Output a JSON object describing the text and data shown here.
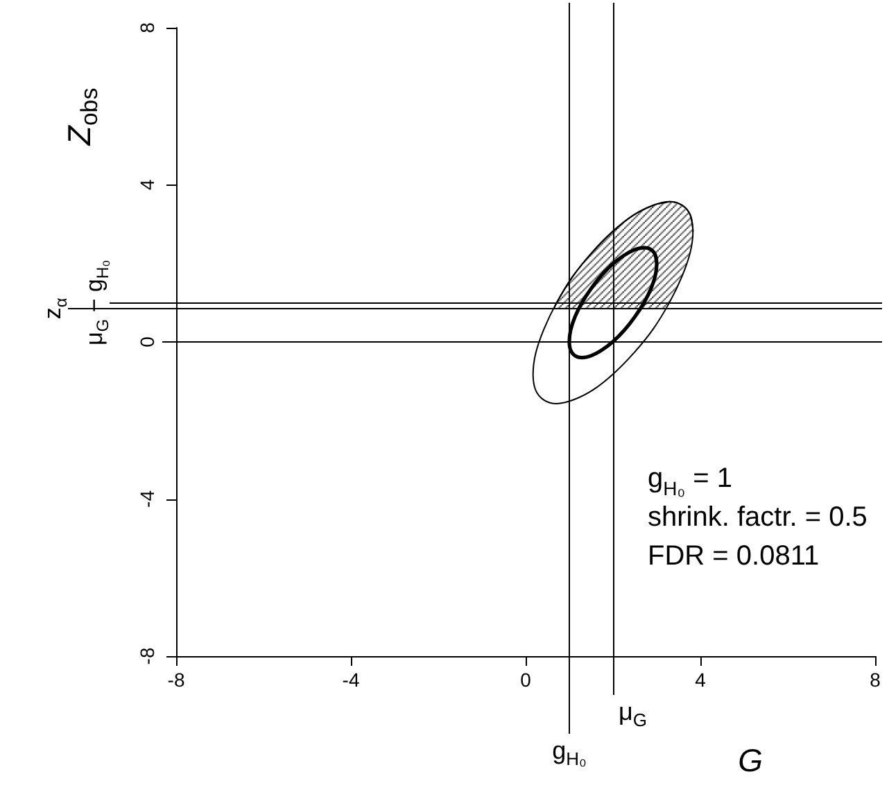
{
  "chart_data": {
    "type": "line",
    "xlabel": "G",
    "ylabel": "Z$_{obs}$",
    "xlim": [
      -8,
      8
    ],
    "ylim": [
      -8,
      8
    ],
    "xticks": [
      -8,
      -4,
      0,
      4,
      8
    ],
    "yticks": [
      -8,
      -4,
      0,
      4,
      8
    ],
    "series": [
      {
        "color": "#000000",
        "x": [
          3.83,
          3.77,
          3.58,
          3.29,
          2.92,
          2.47,
          2.0,
          1.53,
          1.08,
          0.71,
          0.42,
          0.23,
          0.17,
          0.23,
          0.42,
          0.71,
          1.08,
          1.53,
          2.0,
          2.47,
          2.92,
          3.29,
          3.58,
          3.77,
          3.83,
          3.77
        ],
        "values": [
          2.82,
          3.23,
          3.48,
          3.57,
          3.48,
          3.23,
          2.82,
          2.29,
          1.67,
          1.0,
          0.33,
          -0.29,
          -0.82,
          -1.23,
          -1.48,
          -1.57,
          -1.48,
          -1.23,
          -0.82,
          -0.29,
          0.33,
          1.0,
          1.67,
          2.29,
          2.82,
          3.23
        ]
      },
      {
        "color": "#000000",
        "x": [
          3.0,
          2.97,
          2.87,
          2.71,
          2.5,
          2.26,
          2.0,
          1.74,
          1.5,
          1.29,
          1.13,
          1.03,
          1.0,
          1.03,
          1.13,
          1.29,
          1.5,
          1.74,
          2.0,
          2.26,
          2.5,
          2.71,
          2.87,
          2.97,
          3.0,
          2.97
        ],
        "values": [
          1.99,
          2.21,
          2.35,
          2.4,
          2.35,
          2.21,
          1.99,
          1.7,
          1.36,
          1.0,
          0.64,
          0.3,
          0.01,
          -0.21,
          -0.35,
          -0.4,
          -0.35,
          -0.21,
          0.01,
          0.3,
          0.64,
          1.0,
          1.36,
          1.7,
          1.99,
          2.21
        ]
      },
      {
        "color": "#000000",
        "x": [
          0.65,
          0.71,
          1.08,
          1.53,
          2.0,
          2.47,
          2.92,
          3.21,
          3.29,
          3.58,
          3.77,
          3.83
        ],
        "values": [
          0.85,
          1.0,
          1.67,
          2.29,
          2.82,
          3.23,
          3.48,
          3.55,
          3.57,
          3.48,
          3.23,
          2.82
        ],
        "upper": [
          0.85,
          1.0,
          1.67,
          2.29,
          2.82,
          3.23,
          3.48,
          3.55,
          3.57,
          3.48,
          3.23,
          2.82
        ],
        "lower": [
          0.85,
          0.85,
          0.85,
          0.85,
          0.85,
          0.85,
          0.85,
          0.85,
          1.0,
          1.67,
          2.29,
          2.82
        ]
      }
    ],
    "ref_lines": [
      {
        "axis": "x",
        "value": 1,
        "label": "g$_{H₀}$"
      },
      {
        "axis": "x",
        "value": 2,
        "label": "μ$_{G}$"
      },
      {
        "axis": "y",
        "value": 0
      },
      {
        "axis": "y",
        "value": 0.85,
        "label": "z$_{α}$"
      },
      {
        "axis": "y",
        "value": 1,
        "label": "μ$_{G}$ − g$_{H₀}$"
      }
    ],
    "annotations": [
      "g$_{H₀}$ = 1",
      "shrink. factr. = 0.5",
      "FDR = 0.0811"
    ]
  }
}
